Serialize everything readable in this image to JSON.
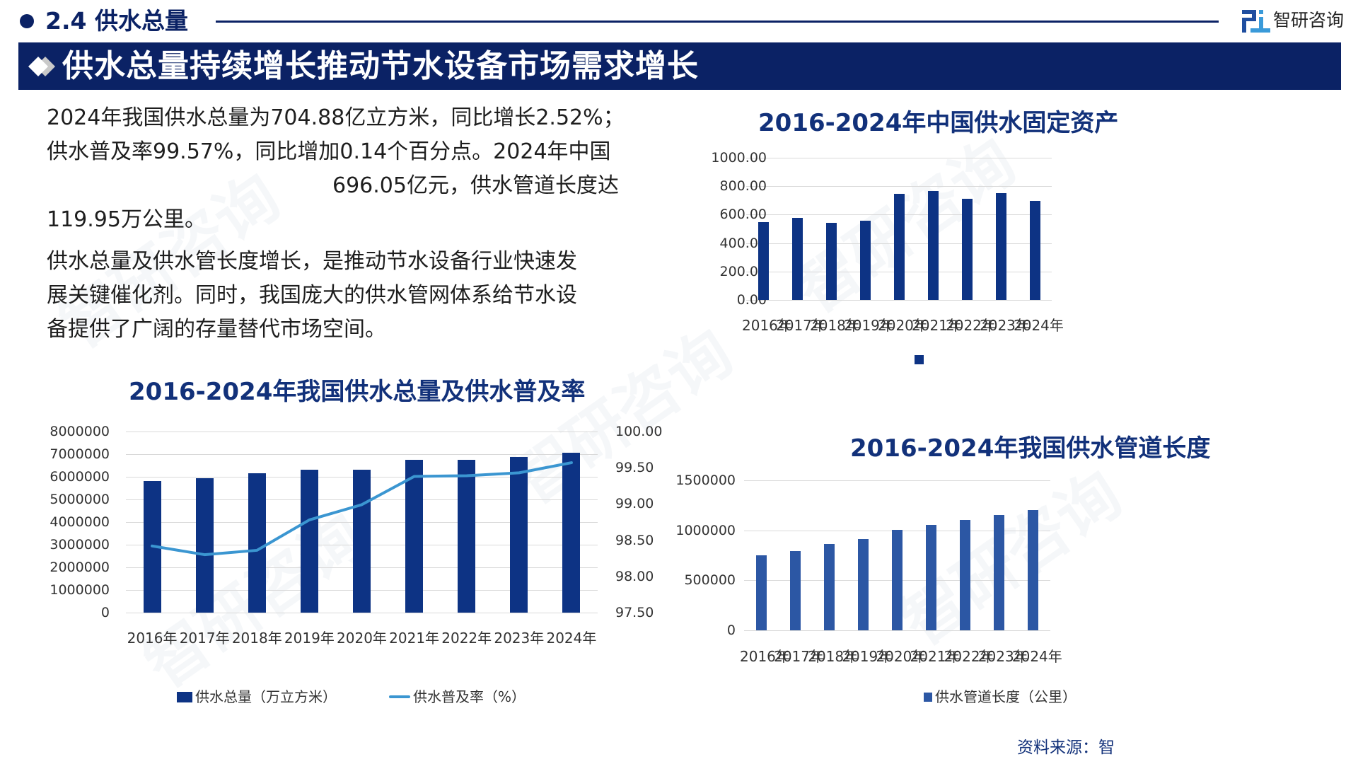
{
  "colors": {
    "navy": "#0b2265",
    "bar_dark": "#0d3384",
    "bar_medium": "#2c57a4",
    "line_light": "#3b96d1",
    "title_blue": "#12317a",
    "grid": "#d9d9d9"
  },
  "section": {
    "number_title": "2.4 供水总量"
  },
  "logo": {
    "icon": "zhiyan-logo-icon",
    "text": "智研咨询"
  },
  "banner": {
    "icon": "double-diamond-icon",
    "title": "供水总量持续增长推动节水设备市场需求增长"
  },
  "paragraphs": {
    "p1_line1": "2024年我国供水总量为704.88亿立方米，同比增长2.52%；",
    "p1_line2": "供水普及率99.57%，同比增加0.14个百分点。2024年中国",
    "p1_line3": "696.05亿元，供水管道长度达",
    "p1_line4": "119.95万公里。",
    "p2_line1": "供水总量及供水管长度增长，是推动节水设备行业快速发",
    "p2_line2": "展关键催化剂。同时，我国庞大的供水管网体系给节水设",
    "p2_line3": "备提供了广阔的存量替代市场空间。"
  },
  "chart_data": [
    {
      "type": "bar+line",
      "title": "2016-2024年我国供水总量及供水普及率",
      "categories": [
        "2016年",
        "2017年",
        "2018年",
        "2019年",
        "2020年",
        "2021年",
        "2022年",
        "2023年",
        "2024年"
      ],
      "series": [
        {
          "name": "供水总量（万立方米）",
          "type": "bar",
          "axis": "left",
          "values": [
            5820000,
            5950000,
            6150000,
            6300000,
            6310000,
            6740000,
            6750000,
            6880000,
            7048800
          ]
        },
        {
          "name": "供水普及率（%）",
          "type": "line",
          "axis": "right",
          "values": [
            98.42,
            98.3,
            98.36,
            98.78,
            98.99,
            99.38,
            99.39,
            99.43,
            99.57
          ]
        }
      ],
      "y_left_ticks": [
        "8000000",
        "7000000",
        "6000000",
        "5000000",
        "4000000",
        "3000000",
        "2000000",
        "1000000",
        "0"
      ],
      "y_right_ticks": [
        "100.00",
        "99.50",
        "99.00",
        "98.50",
        "98.00",
        "97.50"
      ],
      "ylim_left": [
        0,
        8000000
      ],
      "ylim_right": [
        97.5,
        100
      ],
      "grid": true,
      "legend_position": "bottom"
    },
    {
      "type": "bar",
      "title": "2016-2024年中国供水固定资产",
      "categories": [
        "2016年",
        "2017年",
        "2018年",
        "2019年",
        "2020年",
        "2021年",
        "2022年",
        "2023年",
        "2024年"
      ],
      "values": [
        545,
        578,
        541,
        558,
        747,
        768,
        710,
        753,
        696.05
      ],
      "y_ticks": [
        "1000.00",
        "800.00",
        "600.00",
        "400.00",
        "200.00",
        "0.00"
      ],
      "ylim": [
        0,
        1000
      ],
      "grid": true,
      "legend": [
        ""
      ],
      "legend_position": "bottom"
    },
    {
      "type": "bar",
      "title": "2016-2024年我国供水管道长度",
      "categories": [
        "2016年",
        "2017年",
        "2018年",
        "2019年",
        "2020年",
        "2021年",
        "2022年",
        "2023年",
        "2024年"
      ],
      "values": [
        753000,
        794000,
        862000,
        916000,
        1004000,
        1056000,
        1101000,
        1150000,
        1199500
      ],
      "series_name": "供水管道长度（公里）",
      "y_ticks": [
        "1500000",
        "1000000",
        "500000",
        "0"
      ],
      "ylim": [
        0,
        1500000
      ],
      "grid": true,
      "legend_position": "bottom"
    }
  ],
  "source": "资料来源：智"
}
